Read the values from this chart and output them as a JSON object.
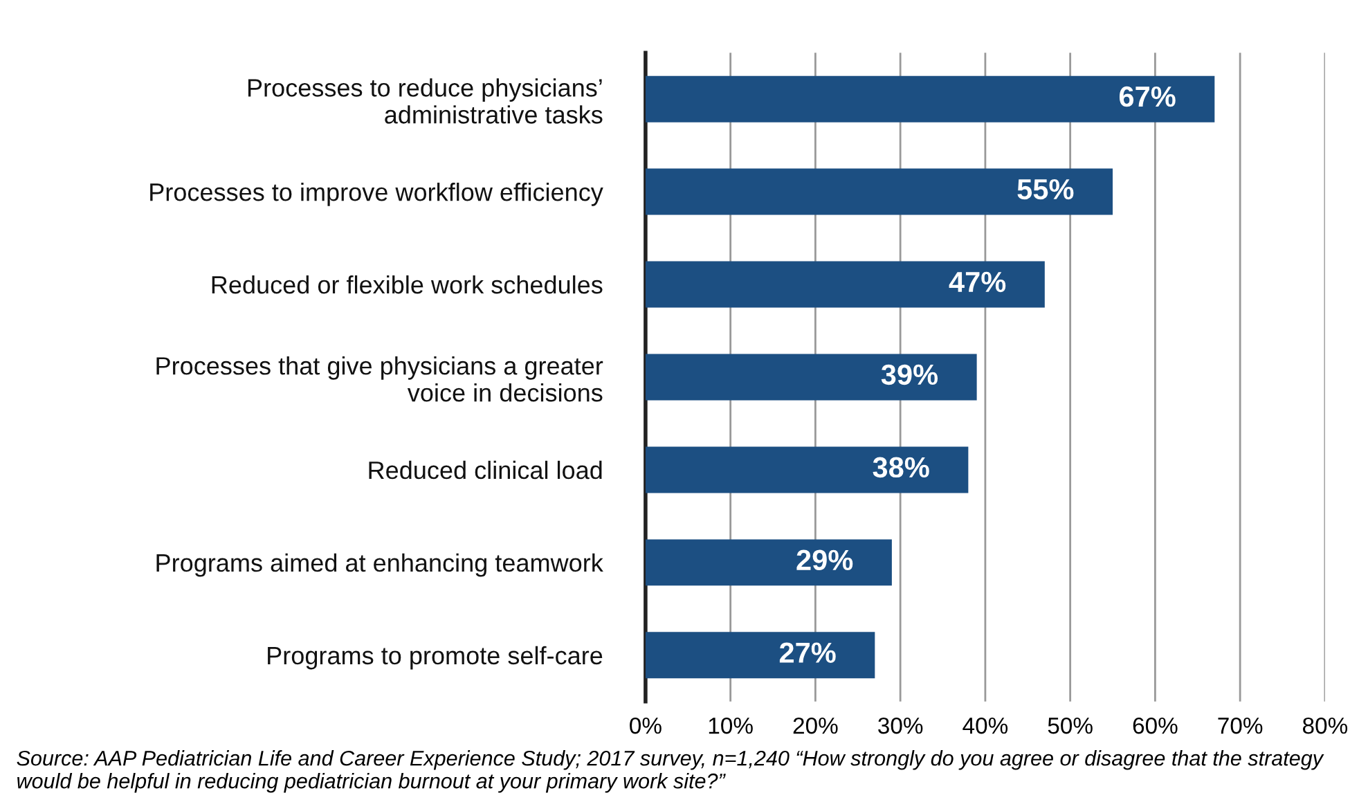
{
  "chart_data": {
    "type": "bar",
    "orientation": "horizontal",
    "categories": [
      "Processes to reduce physicians’\nadministrative tasks",
      "Processes to improve workflow efficiency",
      "Reduced or flexible work schedules",
      "Processes that give physicians a greater\nvoice in decisions",
      "Reduced clinical load",
      "Programs aimed at enhancing teamwork",
      "Programs to promote self-care"
    ],
    "values": [
      67,
      55,
      47,
      39,
      38,
      29,
      27
    ],
    "value_labels": [
      "67%",
      "55%",
      "47%",
      "39%",
      "38%",
      "29%",
      "27%"
    ],
    "color": "#1c4f82",
    "xlim": [
      0,
      80
    ],
    "xticks": [
      {
        "value": 0,
        "label": "0%"
      },
      {
        "value": 10,
        "label": "10%"
      },
      {
        "value": 20,
        "label": "20%"
      },
      {
        "value": 30,
        "label": "30%"
      },
      {
        "value": 40,
        "label": "40%"
      },
      {
        "value": 50,
        "label": "50%"
      },
      {
        "value": 60,
        "label": "60%"
      },
      {
        "value": 70,
        "label": "70%"
      },
      {
        "value": 80,
        "label": "80%"
      }
    ],
    "grid": "x",
    "annotations": [
      "Source: AAP Pediatrician Life and Career Experience Study; 2017 survey, n=1,240 “How strongly do you agree or disagree that the strategy would be helpful in reducing pediatrician burnout at your primary work site?”"
    ]
  }
}
